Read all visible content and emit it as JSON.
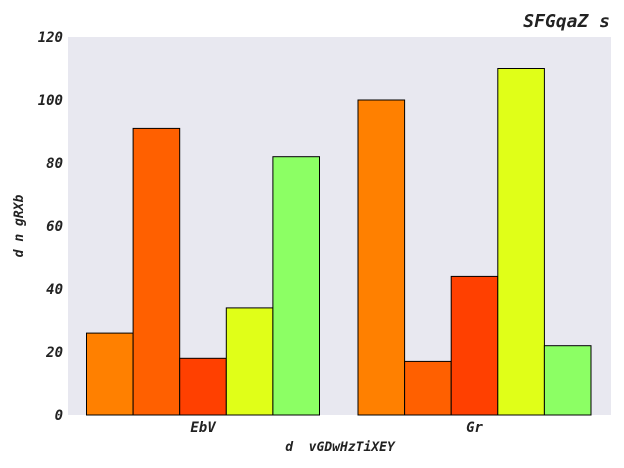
{
  "chart_data": {
    "type": "bar",
    "title": "SFGqaZ s",
    "xlabel": "d  vGDwHzTiXEY",
    "ylabel": "d n gRXb",
    "categories": [
      "EbV",
      "Gr"
    ],
    "series": [
      {
        "color": "#ff8000",
        "values": [
          26,
          100
        ]
      },
      {
        "color": "#ff6000",
        "values": [
          91,
          17
        ]
      },
      {
        "color": "#ff4000",
        "values": [
          18,
          44
        ]
      },
      {
        "color": "#e0ff18",
        "values": [
          34,
          110
        ]
      },
      {
        "color": "#8cff64",
        "values": [
          82,
          22
        ]
      }
    ],
    "ylim": [
      0,
      120
    ],
    "yticks": [
      "0",
      "20",
      "40",
      "60",
      "80",
      "100",
      "120"
    ],
    "grid": false,
    "background": "#e8e8f0"
  }
}
